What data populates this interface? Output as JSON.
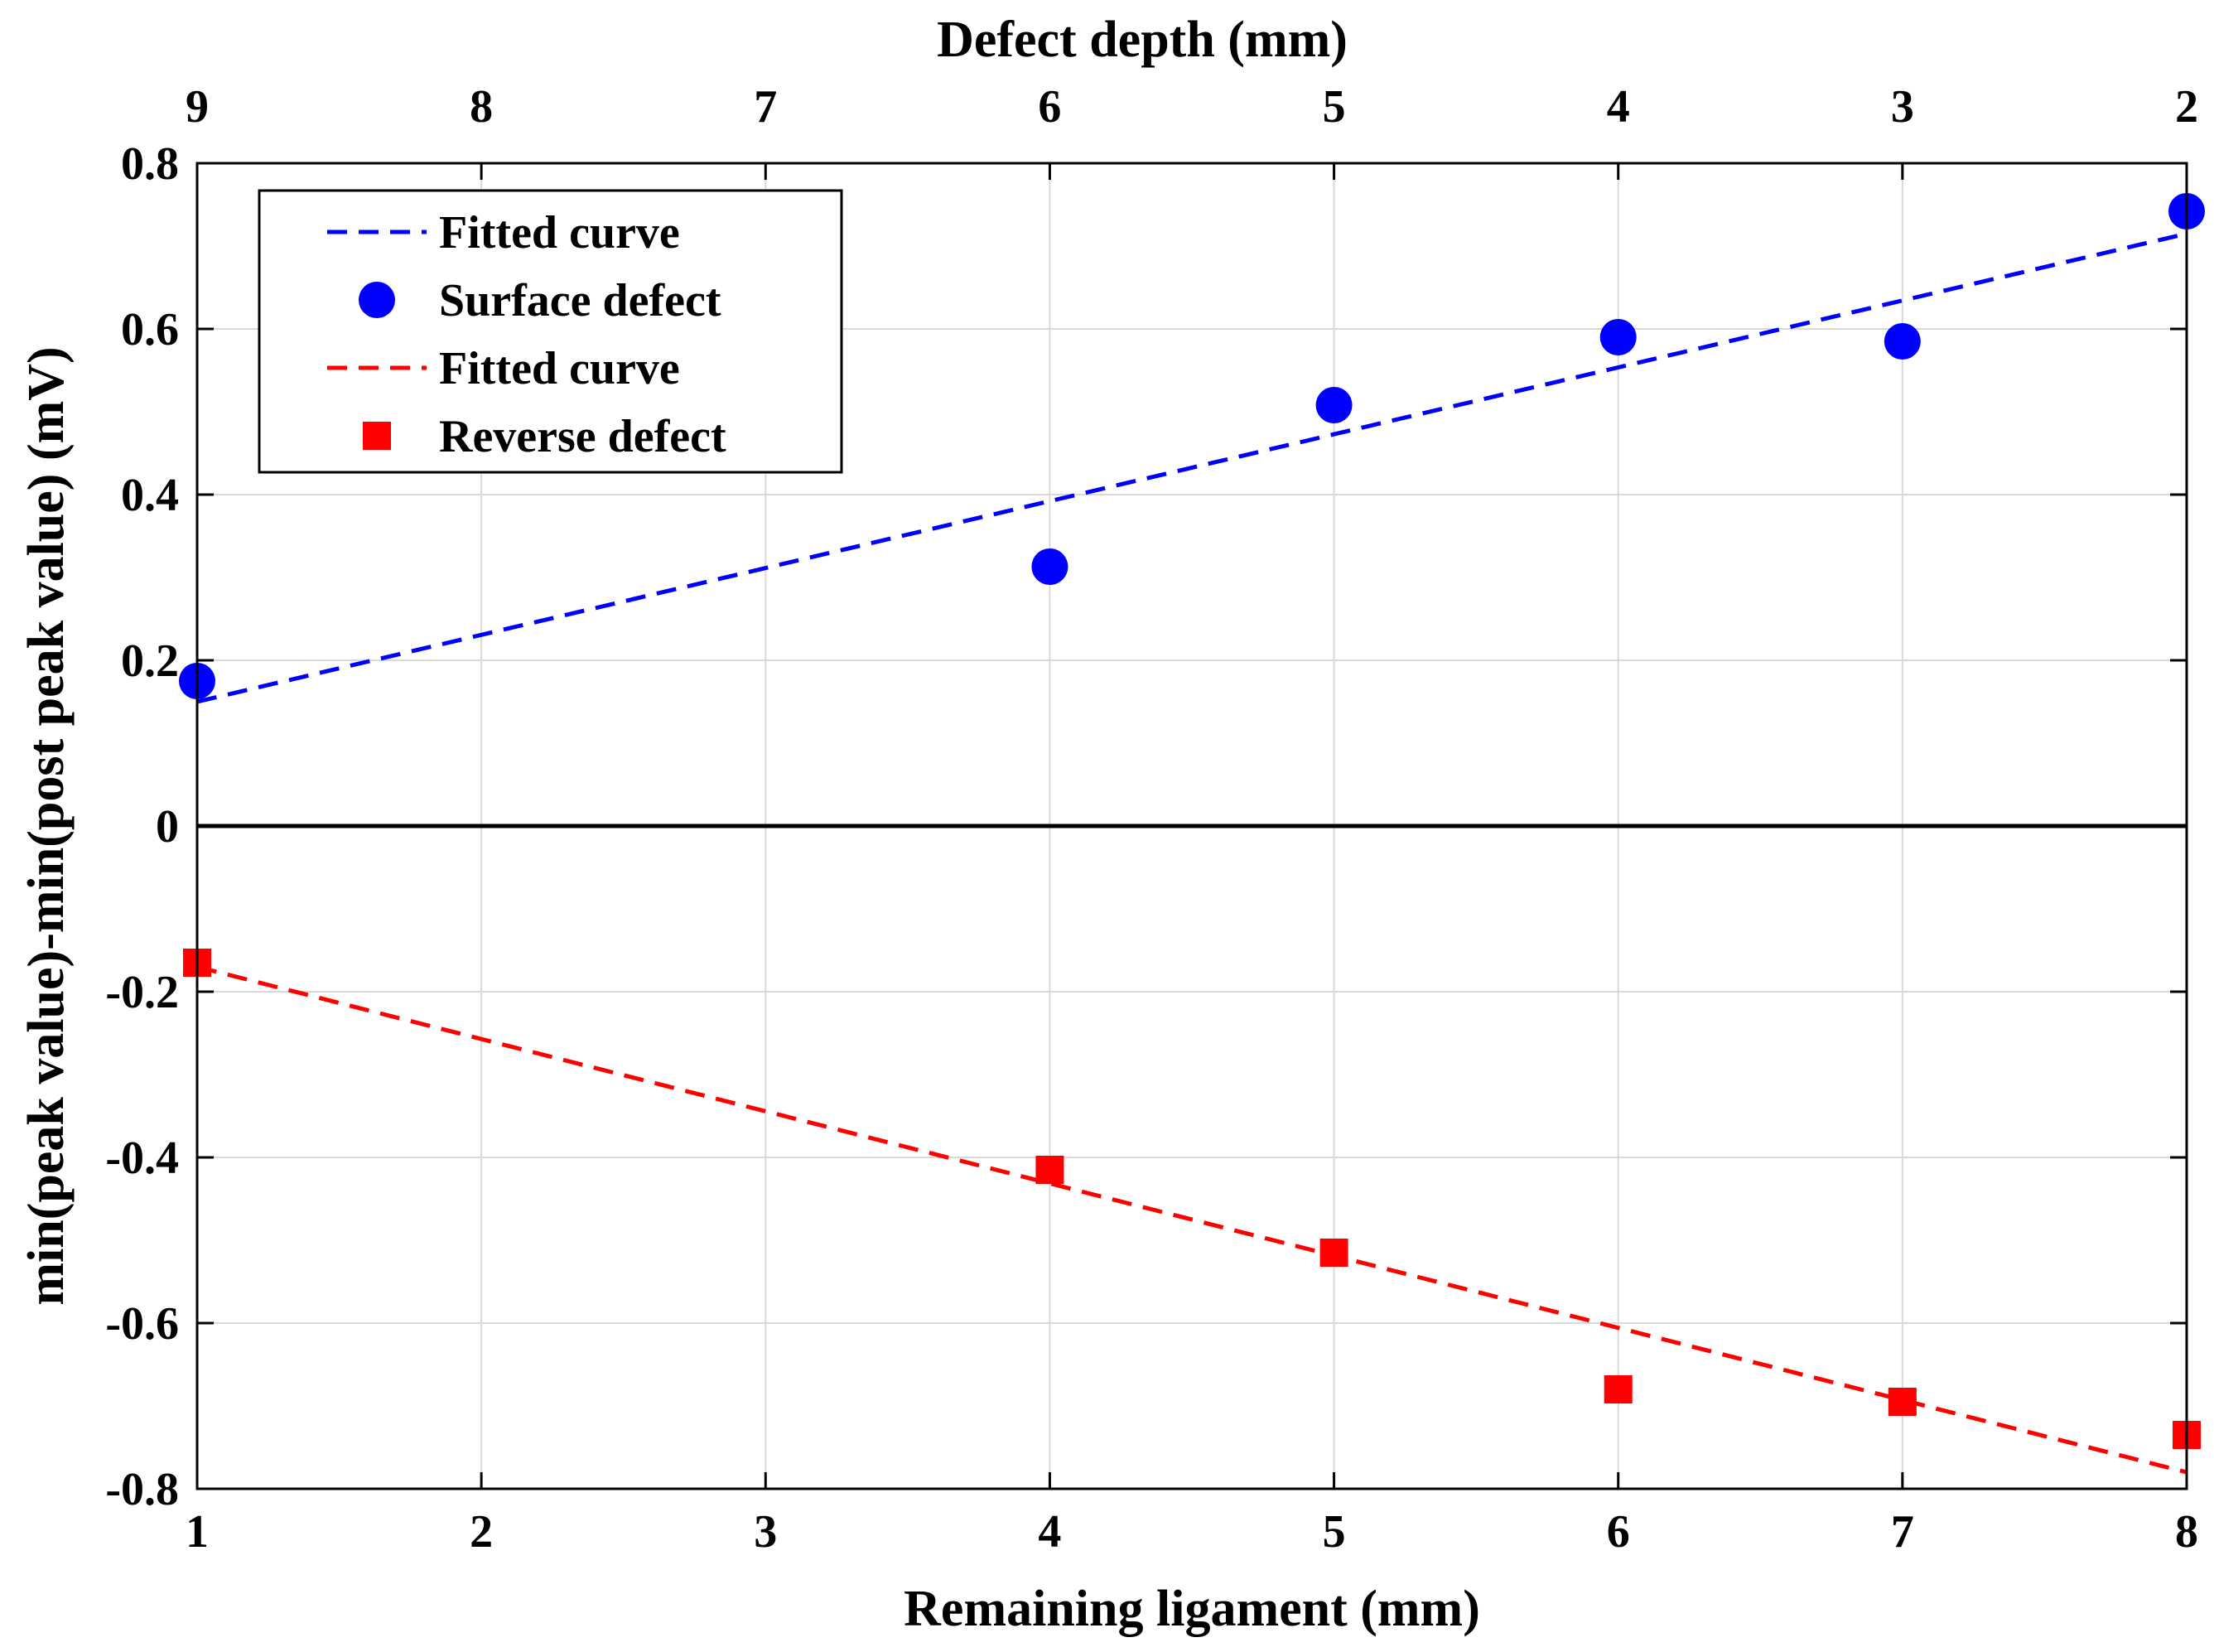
{
  "chart_data": {
    "type": "scatter",
    "title": "",
    "xlabel": "Remaining ligament (mm)",
    "x2label": "Defect depth (mm)",
    "ylabel": "min(peak value)-min(post peak value) (mV)",
    "xlim": [
      1,
      8
    ],
    "ylim": [
      -0.8,
      0.8
    ],
    "xticks": [
      1,
      2,
      3,
      4,
      5,
      6,
      7,
      8
    ],
    "x2ticks": [
      9,
      8,
      7,
      6,
      5,
      4,
      3,
      2
    ],
    "yticks": [
      -0.8,
      -0.6,
      -0.4,
      -0.2,
      0,
      0.2,
      0.4,
      0.6,
      0.8
    ],
    "ytick_labels": [
      "-0.8",
      "-0.6",
      "-0.4",
      "-0.2",
      "0",
      "0.2",
      "0.4",
      "0.6",
      "0.8"
    ],
    "grid": true,
    "zero_line": true,
    "legend_position": "top-left",
    "series": [
      {
        "name": "Fitted curve",
        "kind": "fit-line",
        "color": "#0000ff",
        "x": [
          1,
          8
        ],
        "y": [
          0.15,
          0.715
        ]
      },
      {
        "name": "Surface defect",
        "kind": "circle-marker",
        "color": "#0000ff",
        "x": [
          1,
          4,
          5,
          6,
          7,
          8
        ],
        "y": [
          0.175,
          0.313,
          0.508,
          0.59,
          0.585,
          0.742
        ]
      },
      {
        "name": "Fitted curve",
        "kind": "fit-line",
        "color": "#ff0000",
        "x": [
          1,
          8
        ],
        "y": [
          -0.17,
          -0.78
        ]
      },
      {
        "name": "Reverse defect",
        "kind": "square-marker",
        "color": "#ff0000",
        "x": [
          1,
          4,
          5,
          6,
          7,
          8
        ],
        "y": [
          -0.165,
          -0.415,
          -0.515,
          -0.68,
          -0.695,
          -0.735
        ]
      }
    ]
  }
}
